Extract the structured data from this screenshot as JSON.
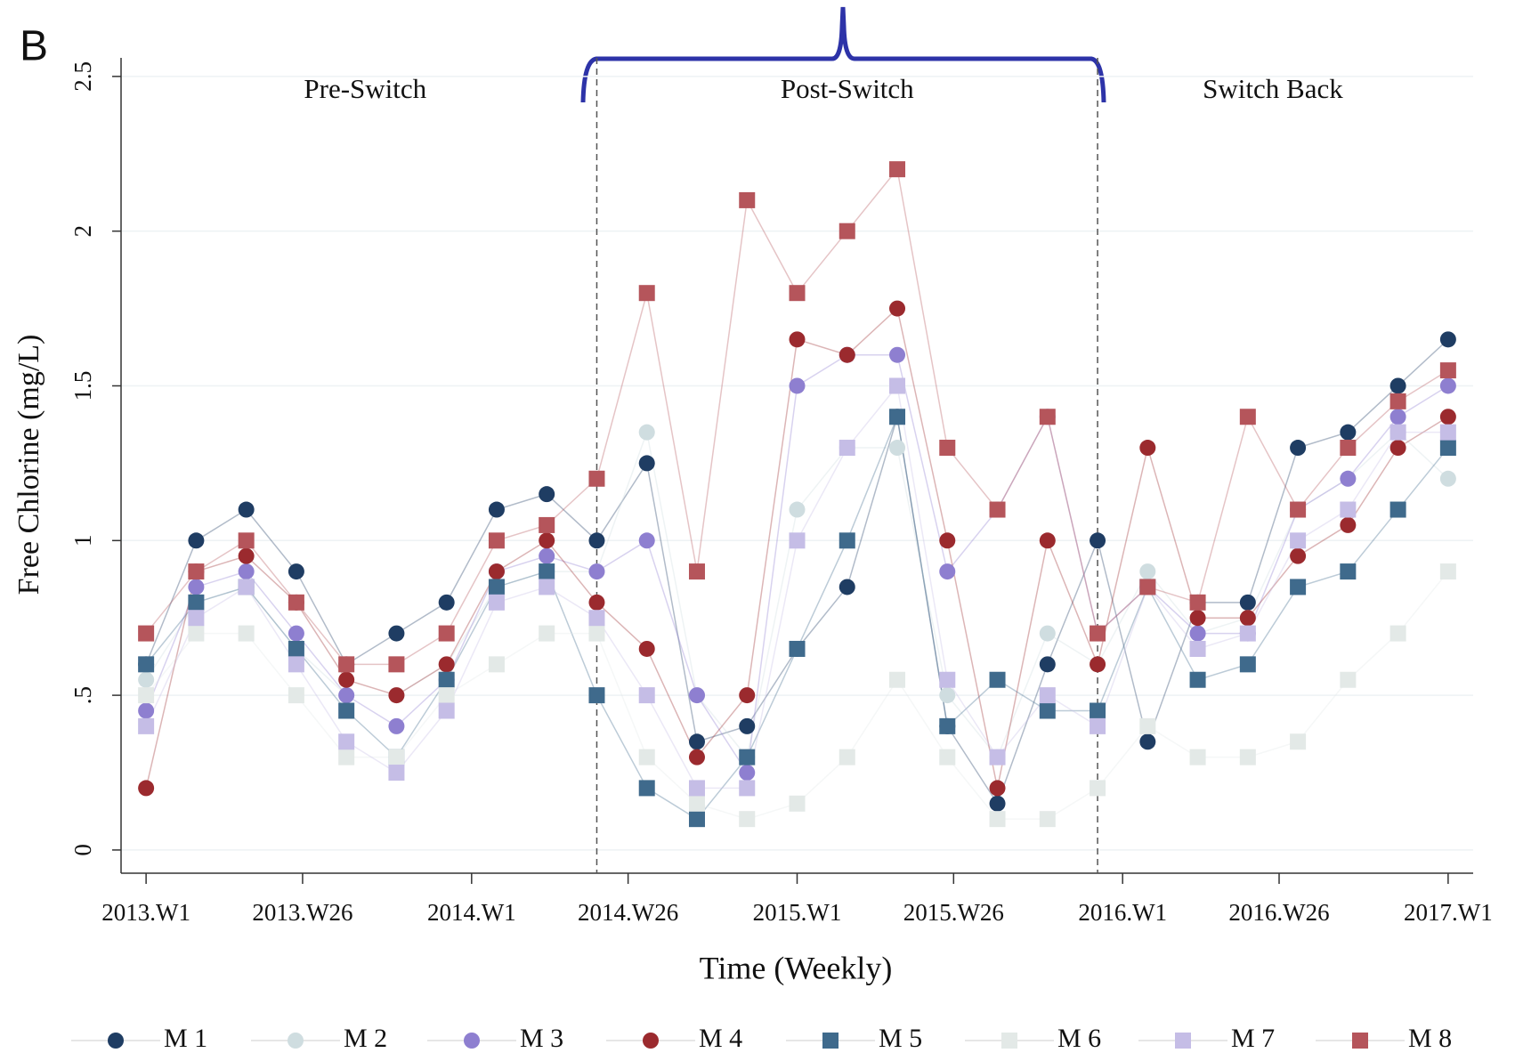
{
  "chart_data": {
    "type": "scatter",
    "panel_label": "B",
    "xlabel": "Time (Weekly)",
    "ylabel": "Free Chlorine (mg/L)",
    "annotations": [
      {
        "text": "Pre-Switch",
        "color": "#2e4f77",
        "x": 35
      },
      {
        "text": "Post-Switch",
        "color": "#a8434a",
        "x": 112
      },
      {
        "text": "Switch Back",
        "color": "#c3dbe3",
        "x": 180
      }
    ],
    "phase_lines": [
      72,
      152
    ],
    "xlim": [
      -4,
      212
    ],
    "ylim": [
      -0.075,
      2.56
    ],
    "xticks": [
      {
        "value": 0,
        "label": "2013.W1"
      },
      {
        "value": 25,
        "label": "2013.W26"
      },
      {
        "value": 52,
        "label": "2014.W1"
      },
      {
        "value": 77,
        "label": "2014.W26"
      },
      {
        "value": 104,
        "label": "2015.W1"
      },
      {
        "value": 129,
        "label": "2015.W26"
      },
      {
        "value": 156,
        "label": "2016.W1"
      },
      {
        "value": 181,
        "label": "2016.W26"
      },
      {
        "value": 208,
        "label": "2017.W1"
      }
    ],
    "yticks": [
      0,
      {
        "value": 0.5,
        "label": ".5"
      },
      1,
      1.5,
      2,
      2.5
    ],
    "grid": true,
    "x": [
      0,
      8,
      16,
      24,
      32,
      40,
      48,
      56,
      64,
      72,
      80,
      88,
      96,
      104,
      112,
      120,
      128,
      136,
      144,
      152,
      160,
      168,
      176,
      184,
      192,
      200,
      208
    ],
    "series": [
      {
        "name": "M 1",
        "color": "#1f3d63",
        "marker": "circle",
        "values": [
          0.6,
          1.0,
          1.1,
          0.9,
          0.6,
          0.7,
          0.8,
          1.1,
          1.15,
          1.0,
          1.25,
          0.35,
          0.4,
          0.65,
          0.85,
          1.4,
          0.4,
          0.15,
          0.6,
          1.0,
          0.35,
          0.8,
          0.8,
          1.3,
          1.35,
          1.5,
          1.65
        ]
      },
      {
        "name": "M 2",
        "color": "#cfdde0",
        "marker": "circle",
        "values": [
          0.55,
          0.8,
          0.85,
          0.65,
          0.5,
          0.5,
          0.6,
          0.85,
          0.9,
          0.9,
          1.35,
          0.5,
          0.3,
          1.1,
          1.3,
          1.3,
          0.5,
          0.3,
          0.7,
          0.6,
          0.9,
          0.7,
          0.75,
          1.1,
          1.2,
          1.35,
          1.2
        ]
      },
      {
        "name": "M 3",
        "color": "#8e7fd0",
        "marker": "circle",
        "values": [
          0.45,
          0.85,
          0.9,
          0.7,
          0.5,
          0.4,
          0.55,
          0.9,
          0.95,
          0.9,
          1.0,
          0.5,
          0.25,
          1.5,
          1.6,
          1.6,
          0.9,
          1.1,
          1.4,
          0.7,
          0.85,
          0.7,
          0.7,
          1.1,
          1.2,
          1.4,
          1.5
        ]
      },
      {
        "name": "M 4",
        "color": "#9b2a2e",
        "marker": "circle",
        "values": [
          0.2,
          0.9,
          0.95,
          0.8,
          0.55,
          0.5,
          0.6,
          0.9,
          1.0,
          0.8,
          0.65,
          0.3,
          0.5,
          1.65,
          1.6,
          1.75,
          1.0,
          0.2,
          1.0,
          0.6,
          1.3,
          0.75,
          0.75,
          0.95,
          1.05,
          1.3,
          1.4
        ]
      },
      {
        "name": "M 5",
        "color": "#3f6a8c",
        "marker": "square",
        "values": [
          0.6,
          0.8,
          0.85,
          0.65,
          0.45,
          0.3,
          0.55,
          0.85,
          0.9,
          0.5,
          0.2,
          0.1,
          0.3,
          0.65,
          1.0,
          1.4,
          0.4,
          0.55,
          0.45,
          0.45,
          0.85,
          0.55,
          0.6,
          0.85,
          0.9,
          1.1,
          1.3
        ]
      },
      {
        "name": "M 6",
        "color": "#e3e9e7",
        "marker": "square",
        "values": [
          0.5,
          0.7,
          0.7,
          0.5,
          0.3,
          0.3,
          0.5,
          0.6,
          0.7,
          0.7,
          0.3,
          0.15,
          0.1,
          0.15,
          0.3,
          0.55,
          0.3,
          0.1,
          0.1,
          0.2,
          0.4,
          0.3,
          0.3,
          0.35,
          0.55,
          0.7,
          0.9
        ]
      },
      {
        "name": "M 7",
        "color": "#c5bde6",
        "marker": "square",
        "values": [
          0.4,
          0.75,
          0.85,
          0.6,
          0.35,
          0.25,
          0.45,
          0.8,
          0.85,
          0.75,
          0.5,
          0.2,
          0.2,
          1.0,
          1.3,
          1.5,
          0.55,
          0.3,
          0.5,
          0.4,
          0.85,
          0.65,
          0.7,
          1.0,
          1.1,
          1.35,
          1.35
        ]
      },
      {
        "name": "M 8",
        "color": "#b5555b",
        "marker": "square",
        "values": [
          0.7,
          0.9,
          1.0,
          0.8,
          0.6,
          0.6,
          0.7,
          1.0,
          1.05,
          1.2,
          1.8,
          0.9,
          2.1,
          1.8,
          2.0,
          2.2,
          1.3,
          1.1,
          1.4,
          0.7,
          0.85,
          0.8,
          1.4,
          1.1,
          1.3,
          1.45,
          1.55
        ]
      }
    ]
  }
}
